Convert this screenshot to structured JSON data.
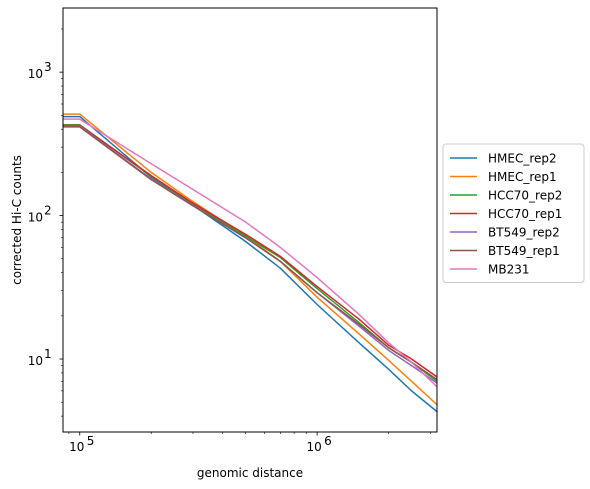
{
  "chart_data": {
    "type": "line",
    "xlabel": "genomic distance",
    "ylabel": "corrected Hi-C counts",
    "xscale": "log",
    "yscale": "log",
    "xlim": [
      85000,
      3200000
    ],
    "ylim": [
      3.1,
      2800
    ],
    "xticks": [
      {
        "value": 100000,
        "base": "10",
        "exp": "5"
      },
      {
        "value": 1000000,
        "base": "10",
        "exp": "6"
      }
    ],
    "yticks": [
      {
        "value": 10,
        "base": "10",
        "exp": "1"
      },
      {
        "value": 100,
        "base": "10",
        "exp": "2"
      },
      {
        "value": 1000,
        "base": "10",
        "exp": "3"
      }
    ],
    "grid": false,
    "legend_position": "center-right-outside",
    "series": [
      {
        "name": "HMEC_rep2",
        "color": "#1f77b4",
        "points": [
          [
            85000,
            490
          ],
          [
            100000,
            490
          ],
          [
            200000,
            185
          ],
          [
            300000,
            118
          ],
          [
            500000,
            66
          ],
          [
            700000,
            43
          ],
          [
            1000000,
            24
          ],
          [
            1500000,
            13
          ],
          [
            2000000,
            8.5
          ],
          [
            2500000,
            6
          ],
          [
            3200000,
            4.3
          ]
        ]
      },
      {
        "name": "HMEC_rep1",
        "color": "#ff7f0e",
        "points": [
          [
            85000,
            510
          ],
          [
            100000,
            510
          ],
          [
            200000,
            200
          ],
          [
            300000,
            125
          ],
          [
            500000,
            72
          ],
          [
            700000,
            48
          ],
          [
            1000000,
            27
          ],
          [
            1500000,
            15
          ],
          [
            2000000,
            9.8
          ],
          [
            2500000,
            7
          ],
          [
            3200000,
            4.8
          ]
        ]
      },
      {
        "name": "HCC70_rep2",
        "color": "#2ca02c",
        "points": [
          [
            85000,
            430
          ],
          [
            100000,
            430
          ],
          [
            200000,
            188
          ],
          [
            300000,
            120
          ],
          [
            500000,
            72
          ],
          [
            700000,
            51
          ],
          [
            1000000,
            31
          ],
          [
            1500000,
            18
          ],
          [
            2000000,
            12
          ],
          [
            2500000,
            9.5
          ],
          [
            3200000,
            7
          ]
        ]
      },
      {
        "name": "HCC70_rep1",
        "color": "#d62728",
        "points": [
          [
            85000,
            425
          ],
          [
            100000,
            425
          ],
          [
            200000,
            190
          ],
          [
            300000,
            122
          ],
          [
            500000,
            74
          ],
          [
            700000,
            52
          ],
          [
            1000000,
            32
          ],
          [
            1500000,
            19
          ],
          [
            2000000,
            12.5
          ],
          [
            2500000,
            10
          ],
          [
            3200000,
            7.5
          ]
        ]
      },
      {
        "name": "BT549_rep2",
        "color": "#9467bd",
        "points": [
          [
            85000,
            420
          ],
          [
            100000,
            420
          ],
          [
            200000,
            180
          ],
          [
            300000,
            118
          ],
          [
            500000,
            70
          ],
          [
            700000,
            48
          ],
          [
            1000000,
            29
          ],
          [
            1500000,
            17
          ],
          [
            2000000,
            11.5
          ],
          [
            2500000,
            9
          ],
          [
            3200000,
            6.8
          ]
        ]
      },
      {
        "name": "BT549_rep1",
        "color": "#8c564b",
        "points": [
          [
            85000,
            415
          ],
          [
            100000,
            415
          ],
          [
            200000,
            178
          ],
          [
            300000,
            117
          ],
          [
            500000,
            70
          ],
          [
            700000,
            48
          ],
          [
            1000000,
            29
          ],
          [
            1500000,
            17.5
          ],
          [
            2000000,
            12
          ],
          [
            2500000,
            9.5
          ],
          [
            3200000,
            7.2
          ]
        ]
      },
      {
        "name": "MB231",
        "color": "#e377c2",
        "points": [
          [
            85000,
            470
          ],
          [
            100000,
            470
          ],
          [
            200000,
            230
          ],
          [
            300000,
            152
          ],
          [
            500000,
            90
          ],
          [
            700000,
            60
          ],
          [
            1000000,
            37
          ],
          [
            1500000,
            20.5
          ],
          [
            2000000,
            13
          ],
          [
            2500000,
            9.5
          ],
          [
            3200000,
            6.4
          ]
        ]
      }
    ]
  }
}
